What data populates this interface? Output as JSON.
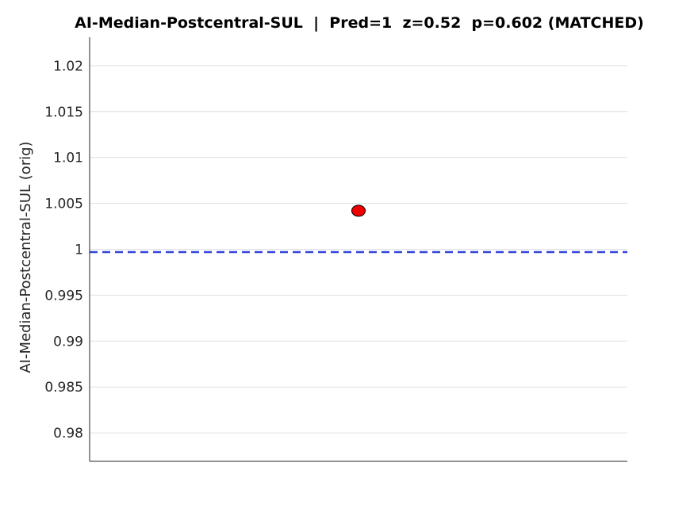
{
  "chart_data": {
    "type": "scatter",
    "title": "AI-Median-Postcentral-SUL  |  Pred=1  z=0.52  p=0.602 (MATCHED)",
    "xlabel": "",
    "ylabel": "AI-Median-Postcentral-SUL (orig)",
    "ylim": [
      0.9769,
      1.0231
    ],
    "yticks": [
      0.98,
      0.985,
      0.99,
      0.995,
      1,
      1.005,
      1.01,
      1.015,
      1.02
    ],
    "ytick_labels": [
      "0.98",
      "0.985",
      "0.99",
      "0.995",
      "1",
      "1.005",
      "1.01",
      "1.015",
      "1.02"
    ],
    "grid": true,
    "points": [
      {
        "x": 1,
        "y": 1.0042,
        "color": "#ee0000"
      }
    ],
    "reference_line": {
      "y": 0.9997,
      "color": "#3344dd",
      "style": "dashed"
    },
    "colors": {
      "point": "#ee0000",
      "reference": "#3344dd",
      "grid": "#e0e0e0",
      "axis": "#262626"
    }
  }
}
